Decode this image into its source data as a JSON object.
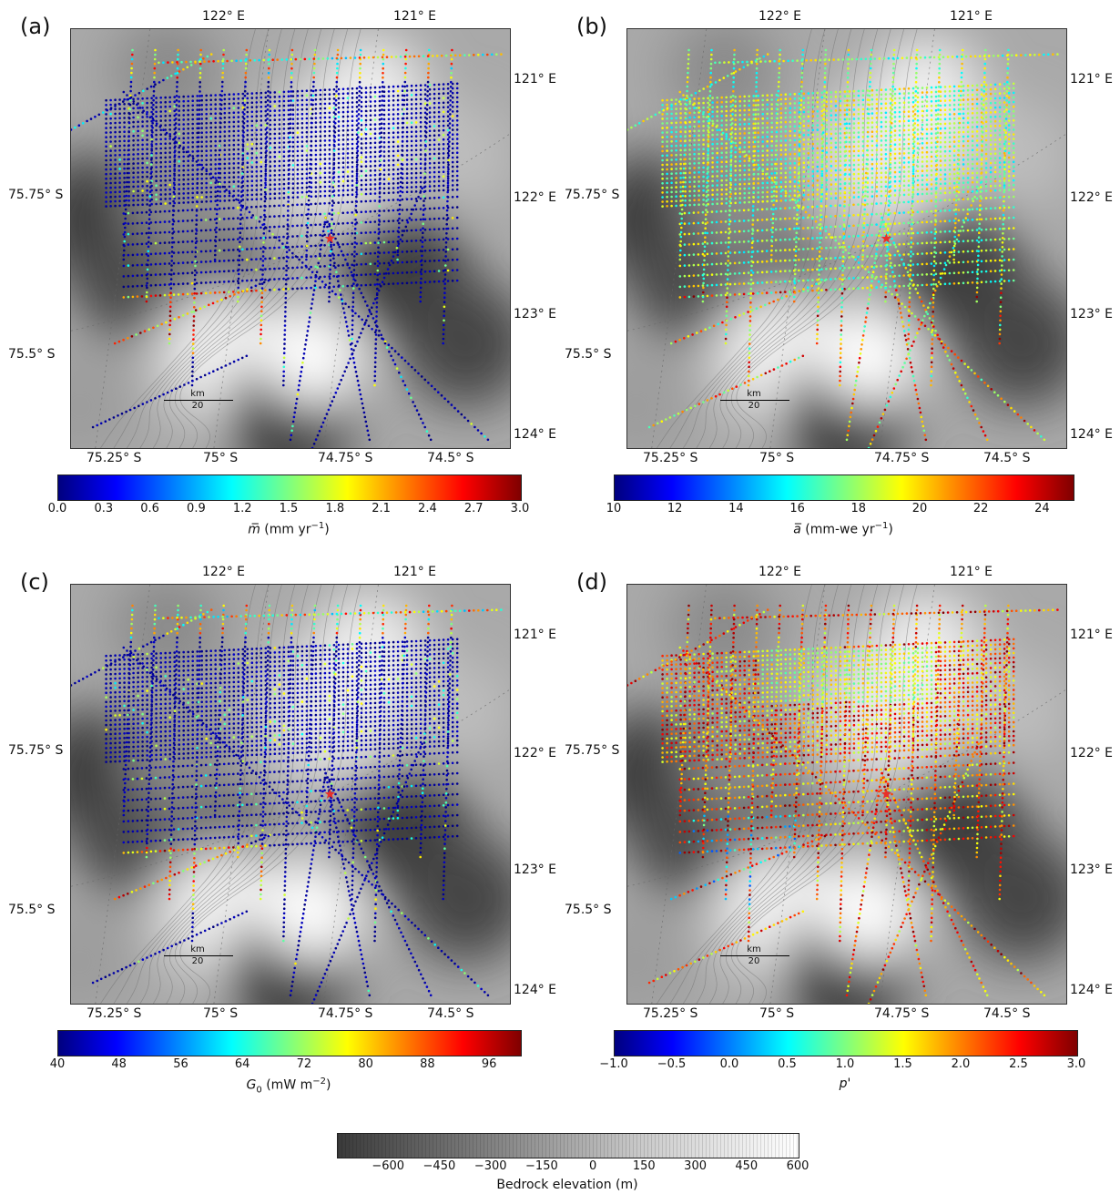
{
  "panels": [
    {
      "letter": "(a)",
      "top_lon": [
        "122° E",
        "121° E"
      ],
      "right_lon": [
        "121° E",
        "122° E",
        "123° E",
        "124° E"
      ],
      "left_lat": [
        "75.75° S",
        "75.5° S"
      ],
      "bottom_lat": [
        "75.25° S",
        "75° S",
        "74.75° S",
        "74.5° S"
      ],
      "scale_unit": "km",
      "scale_value": "20",
      "colorbar": {
        "ticks": [
          "0.0",
          "0.3",
          "0.6",
          "0.9",
          "1.2",
          "1.5",
          "1.8",
          "2.1",
          "2.4",
          "2.7",
          "3.0"
        ],
        "label_var": "m̅",
        "label_unit": " (mm yr",
        "label_exp": "−1",
        "label_end": ")"
      },
      "track_color_scheme": "blue-dominant"
    },
    {
      "letter": "(b)",
      "top_lon": [
        "122° E",
        "121° E"
      ],
      "right_lon": [
        "121° E",
        "122° E",
        "123° E",
        "124° E"
      ],
      "left_lat": [
        "75.75° S",
        "75.5° S"
      ],
      "bottom_lat": [
        "75.25° S",
        "75° S",
        "74.75° S",
        "74.5° S"
      ],
      "scale_unit": "km",
      "scale_value": "20",
      "colorbar": {
        "ticks": [
          "10",
          "12",
          "14",
          "16",
          "18",
          "20",
          "22",
          "24"
        ],
        "label_var": "a̅",
        "label_unit": " (mm-we yr",
        "label_exp": "−1",
        "label_end": ")"
      },
      "track_color_scheme": "green-yellow"
    },
    {
      "letter": "(c)",
      "top_lon": [
        "122° E",
        "121° E"
      ],
      "right_lon": [
        "121° E",
        "122° E",
        "123° E",
        "124° E"
      ],
      "left_lat": [
        "75.75° S",
        "75.5° S"
      ],
      "bottom_lat": [
        "75.25° S",
        "75° S",
        "74.75° S",
        "74.5° S"
      ],
      "scale_unit": "km",
      "scale_value": "20",
      "colorbar": {
        "ticks": [
          "40",
          "48",
          "56",
          "64",
          "72",
          "80",
          "88",
          "96"
        ],
        "label_var": "G",
        "label_sub": "0",
        "label_unit": "  (mW m",
        "label_exp": "−2",
        "label_end": ")"
      },
      "track_color_scheme": "blue-dominant"
    },
    {
      "letter": "(d)",
      "top_lon": [
        "122° E",
        "121° E"
      ],
      "right_lon": [
        "121° E",
        "122° E",
        "123° E",
        "124° E"
      ],
      "left_lat": [
        "75.75° S",
        "75.5° S"
      ],
      "bottom_lat": [
        "75.25° S",
        "75° S",
        "74.75° S",
        "74.5° S"
      ],
      "scale_unit": "km",
      "scale_value": "20",
      "colorbar": {
        "ticks": [
          "−1.0",
          "−0.5",
          "0.0",
          "0.5",
          "1.0",
          "1.5",
          "2.0",
          "2.5",
          "3.0"
        ],
        "label_var": "p'",
        "label_unit": "",
        "label_exp": "",
        "label_end": ""
      },
      "track_color_scheme": "orange-red"
    }
  ],
  "bedrock_colorbar": {
    "ticks": [
      "−600",
      "−450",
      "−300",
      "−150",
      "0",
      "150",
      "300",
      "450",
      "600"
    ],
    "label": "Bedrock elevation (m)"
  },
  "colors": {
    "star": "#e8302a",
    "jet_stops": [
      "#00007f",
      "#0000ff",
      "#007fff",
      "#00ffff",
      "#7fff7f",
      "#ffff00",
      "#ff7f00",
      "#ff0000",
      "#7f0000"
    ]
  }
}
